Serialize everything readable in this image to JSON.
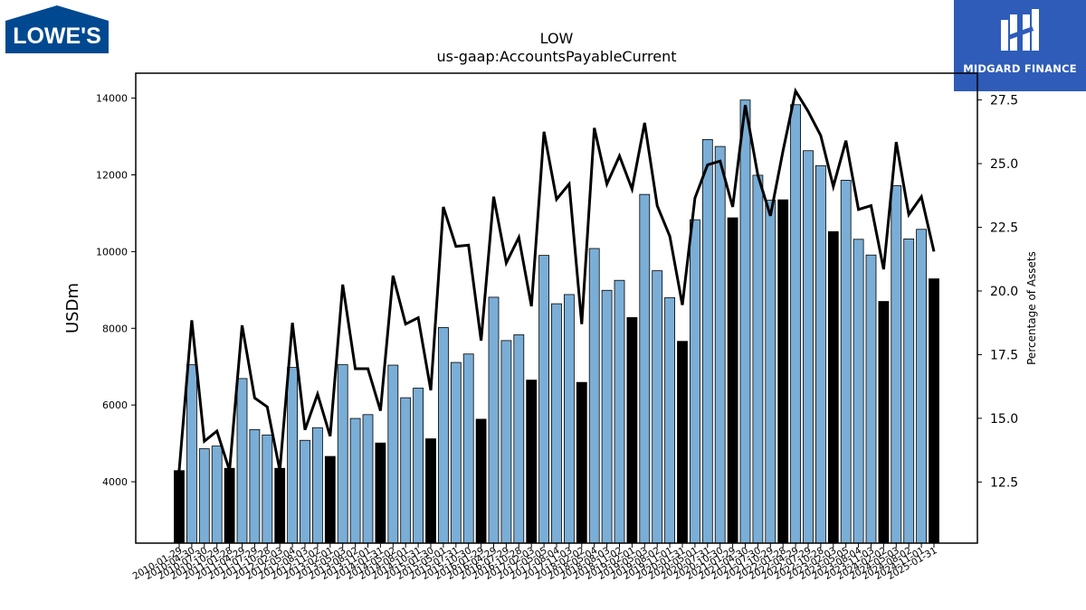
{
  "brand_left": "LOWE'S",
  "brand_right": "MIDGARD FINANCE",
  "colors": {
    "bar_regular": "#7aaed6",
    "bar_highlight": "#000000",
    "line": "#000000",
    "brand_blue": "#2e5cb8",
    "lowes_blue": "#004990"
  },
  "chart_data": {
    "type": "bar",
    "title": "LOW",
    "subtitle": "us-gaap:AccountsPayableCurrent",
    "ylabel": "USDm",
    "y2label": "Percentage of Assets",
    "ylim": [
      2400,
      14650
    ],
    "y2lim": [
      10.1,
      28.55
    ],
    "yticks": [
      4000,
      6000,
      8000,
      10000,
      12000,
      14000
    ],
    "y2ticks": [
      "12.5",
      "15.0",
      "17.5",
      "20.0",
      "22.5",
      "25.0",
      "27.5"
    ],
    "grid": false,
    "categories": [
      "2010-01-29",
      "2010-04-30",
      "2010-07-30",
      "2010-10-29",
      "2011-01-28",
      "2011-04-29",
      "2011-07-29",
      "2011-10-28",
      "2012-02-03",
      "2012-05-04",
      "2012-08-03",
      "2012-11-02",
      "2013-02-01",
      "2013-05-03",
      "2013-08-02",
      "2013-11-01",
      "2014-01-31",
      "2014-05-02",
      "2014-08-01",
      "2014-10-31",
      "2015-01-30",
      "2015-05-01",
      "2015-07-31",
      "2015-10-30",
      "2016-01-29",
      "2016-04-29",
      "2016-07-29",
      "2016-10-28",
      "2017-02-03",
      "2017-05-05",
      "2017-08-04",
      "2017-11-03",
      "2018-02-02",
      "2018-05-04",
      "2018-08-03",
      "2018-11-02",
      "2019-02-01",
      "2019-05-03",
      "2019-08-02",
      "2019-11-01",
      "2020-01-31",
      "2020-05-01",
      "2020-07-31",
      "2020-10-30",
      "2021-01-29",
      "2021-04-30",
      "2021-07-30",
      "2021-10-29",
      "2022-01-28",
      "2022-04-29",
      "2022-07-29",
      "2022-10-28",
      "2023-02-03",
      "2023-05-05",
      "2023-08-04",
      "2023-11-03",
      "2024-02-02",
      "2024-05-03",
      "2024-08-02",
      "2024-11-01",
      "2025-01-31"
    ],
    "tick_labels": [
      "2010-01-29",
      "2010-04-30",
      "2010-07-30",
      "2010-10-29",
      "2011-01-28",
      "2011-04-29",
      "2011-07-29",
      "2011-10-28",
      "2012-02-03",
      "2012-05-04",
      "2012-08-03",
      "2012-11-02",
      "2013-02-01",
      "2013-05-03",
      "2013-08-02",
      "2013-11-01",
      "2014-01-31",
      "2014-05-02",
      "2014-08-01",
      "2014-10-31",
      "2015-01-30",
      "2015-05-01",
      "2015-07-31",
      "2015-10-30",
      "2016-01-29",
      "2016-04-29",
      "2016-07-29",
      "2016-10-28",
      "2017-02-03",
      "2017-05-05",
      "2017-08-04",
      "2017-11-03",
      "2018-02-02",
      "2018-05-04",
      "2018-08-03",
      "2018-11-02",
      "2019-02-01",
      "2019-05-03",
      "2019-08-02",
      "2019-11-01",
      "2020-01-31",
      "2020-05-01",
      "2020-07-31",
      "2020-10-30",
      "2021-01-29",
      "2021-04-30",
      "2021-07-30",
      "2021-10-29",
      "2022-01-28",
      "2022-04-29",
      "2022-07-29",
      "2022-10-28",
      "2023-02-03",
      "2023-05-05",
      "2023-08-04",
      "2023-11-03",
      "2024-02-02",
      "2024-05-03",
      "2024-08-02",
      "2024-11-01",
      "2025-01-31"
    ],
    "highlight_indices": [
      0,
      4,
      8,
      12,
      16,
      20,
      24,
      28,
      32,
      36,
      40,
      44,
      48,
      52,
      56,
      60
    ],
    "series": [
      {
        "kind": "bar",
        "axis": "left",
        "values": [
          4290,
          7050,
          4860,
          4930,
          4350,
          6690,
          5360,
          5220,
          4350,
          6980,
          5080,
          5410,
          4660,
          7050,
          5650,
          5750,
          5010,
          7040,
          6190,
          6440,
          5120,
          8020,
          7110,
          7330,
          5630,
          8810,
          7680,
          7830,
          6650,
          9900,
          8640,
          8880,
          6590,
          10080,
          8990,
          9250,
          8280,
          11490,
          9500,
          8800,
          7660,
          10830,
          12920,
          12740,
          10880,
          13950,
          11990,
          11340,
          11350,
          13830,
          12630,
          12240,
          10520,
          11860,
          10320,
          9910,
          8700,
          11720,
          10330,
          10580,
          9290
        ]
      },
      {
        "kind": "line",
        "axis": "right",
        "values": [
          12.95,
          18.85,
          14.1,
          14.5,
          12.95,
          18.65,
          15.8,
          15.45,
          12.95,
          18.75,
          14.55,
          15.95,
          14.3,
          20.25,
          16.95,
          16.95,
          15.3,
          20.6,
          18.7,
          18.95,
          16.1,
          23.3,
          21.75,
          21.8,
          18.05,
          23.7,
          21.1,
          22.1,
          19.4,
          26.25,
          23.6,
          24.2,
          18.7,
          26.4,
          24.2,
          25.3,
          24.0,
          26.6,
          23.35,
          22.15,
          19.45,
          23.65,
          24.95,
          25.1,
          23.3,
          27.3,
          24.55,
          22.95,
          25.5,
          27.85,
          27.05,
          26.1,
          24.1,
          25.9,
          23.2,
          23.35,
          20.85,
          25.85,
          23.0,
          23.7,
          21.55
        ]
      }
    ]
  }
}
